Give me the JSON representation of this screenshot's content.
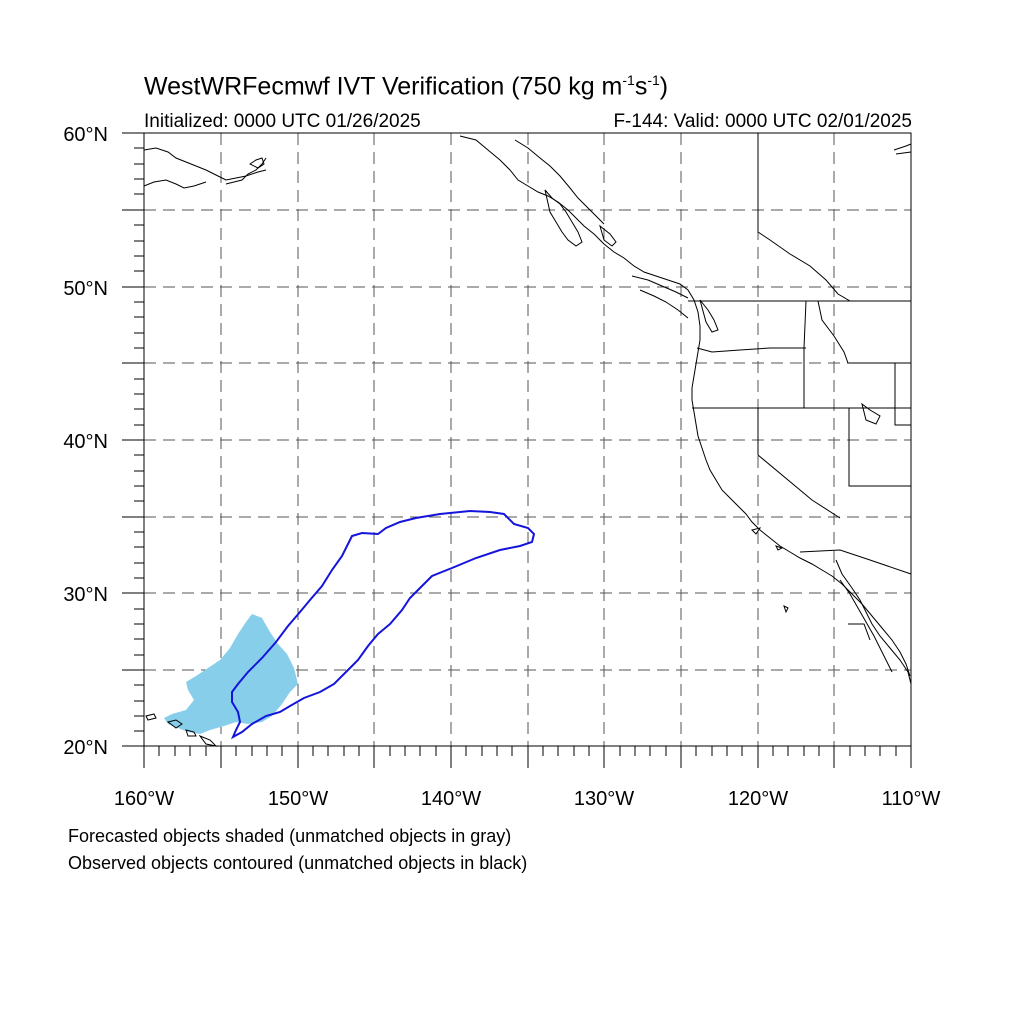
{
  "title": {
    "prefix": "WestWRFecmwf IVT Verification (750 kg m",
    "sup1": "-1",
    "mid": "s",
    "sup2": "-1",
    "suffix": ")"
  },
  "initialized": "Initialized: 0000 UTC 01/26/2025",
  "valid": "F-144: Valid: 0000 UTC 02/01/2025",
  "notes": {
    "forecast": "Forecasted objects shaded (unmatched objects in gray)",
    "observed": "Observed objects contoured (unmatched objects in black)"
  },
  "axes": {
    "lat_labels": [
      "20°N",
      "30°N",
      "40°N",
      "50°N",
      "60°N"
    ],
    "lon_labels": [
      "160°W",
      "150°W",
      "140°W",
      "130°W",
      "120°W",
      "110°W"
    ]
  },
  "colors": {
    "forecast_fill": "#87CEEB",
    "observed_line": "#1414DC",
    "coast": "#000000"
  }
}
